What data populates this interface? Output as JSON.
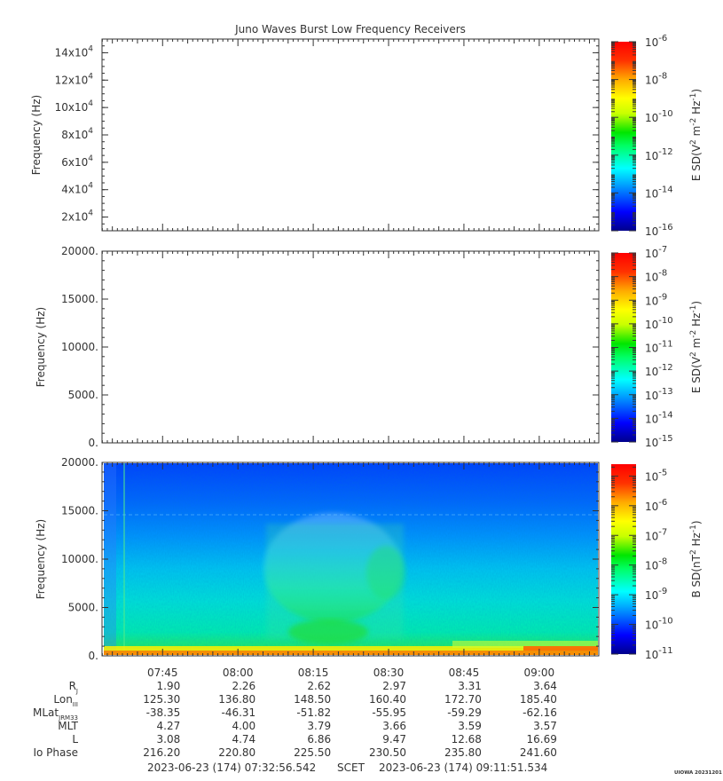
{
  "title": "Juno Waves Burst Low Frequency Receivers",
  "footer": {
    "start": "2023-06-23 (174) 07:32:56.542",
    "scet": "SCET",
    "end": "2023-06-23 (174) 09:11:51.534",
    "stamp": "UIOWA 20231201"
  },
  "chart_data": [
    {
      "type": "heatmap",
      "panel": "top",
      "ylabel": "Frequency (Hz)",
      "ylim": [
        10000,
        150000
      ],
      "yticks": [
        {
          "value": 20000,
          "mant": "2x10",
          "exp": "4"
        },
        {
          "value": 40000,
          "mant": "4x10",
          "exp": "4"
        },
        {
          "value": 60000,
          "mant": "6x10",
          "exp": "4"
        },
        {
          "value": 80000,
          "mant": "8x10",
          "exp": "4"
        },
        {
          "value": 100000,
          "mant": "10x10",
          "exp": "4"
        },
        {
          "value": 120000,
          "mant": "12x10",
          "exp": "4"
        },
        {
          "value": 140000,
          "mant": "14x10",
          "exp": "4"
        }
      ],
      "colorbar": {
        "label_html": "E SD(V<tspan dy='-5' font-size='8'>2</tspan><tspan dy='5'> m</tspan><tspan dy='-5' font-size='8'>-2</tspan><tspan dy='5'> Hz</tspan><tspan dy='-5' font-size='8'>-1</tspan><tspan dy='5'>)</tspan>",
        "log_range": [
          -16,
          -6
        ],
        "ticks": [
          -6,
          -8,
          -10,
          -12,
          -14,
          -16
        ]
      },
      "data": "empty"
    },
    {
      "type": "heatmap",
      "panel": "middle",
      "ylabel": "Frequency (Hz)",
      "ylim": [
        0,
        20000
      ],
      "yticks": [
        {
          "value": 0,
          "label": "0."
        },
        {
          "value": 5000,
          "label": "5000."
        },
        {
          "value": 10000,
          "label": "10000."
        },
        {
          "value": 15000,
          "label": "15000."
        },
        {
          "value": 20000,
          "label": "20000."
        }
      ],
      "colorbar": {
        "log_range": [
          -15,
          -7
        ],
        "ticks": [
          -7,
          -8,
          -9,
          -10,
          -11,
          -12,
          -13,
          -14,
          -15
        ]
      },
      "data": "empty"
    },
    {
      "type": "heatmap",
      "panel": "bottom",
      "ylabel": "Frequency (Hz)",
      "ylim": [
        0,
        20000
      ],
      "yticks": [
        {
          "value": 0,
          "label": "0."
        },
        {
          "value": 5000,
          "label": "5000."
        },
        {
          "value": 10000,
          "label": "10000."
        },
        {
          "value": 15000,
          "label": "15000."
        },
        {
          "value": 20000,
          "label": "20000."
        }
      ],
      "colorbar": {
        "log_range": [
          -11,
          -4.6
        ],
        "ticks": [
          -5,
          -6,
          -7,
          -8,
          -9,
          -10,
          -11
        ]
      },
      "data": "spectrogram: broadband noise, strongest below 1000 Hz, enhanced emission 08:07-08:30 up to ~16000 Hz"
    }
  ],
  "time_axis": {
    "start_minutes": 452.94,
    "end_minutes": 551.86,
    "major": [
      {
        "label": "07:45",
        "minutes": 465
      },
      {
        "label": "08:00",
        "minutes": 480
      },
      {
        "label": "08:15",
        "minutes": 495
      },
      {
        "label": "08:30",
        "minutes": 510
      },
      {
        "label": "08:45",
        "minutes": 525
      },
      {
        "label": "09:00",
        "minutes": 540
      }
    ]
  },
  "ephemeris": [
    {
      "label": "R",
      "sub": "J",
      "values": [
        "1.90",
        "2.26",
        "2.62",
        "2.97",
        "3.31",
        "3.64"
      ]
    },
    {
      "label": "Lon",
      "sub": "III",
      "values": [
        "125.30",
        "136.80",
        "148.50",
        "160.40",
        "172.70",
        "185.40"
      ]
    },
    {
      "label": "MLat",
      "sub": "JRM33",
      "values": [
        "-38.35",
        "-46.31",
        "-51.82",
        "-55.95",
        "-59.29",
        "-62.16"
      ]
    },
    {
      "label": "MLT",
      "sub": "",
      "values": [
        "4.27",
        "4.00",
        "3.79",
        "3.66",
        "3.59",
        "3.57"
      ]
    },
    {
      "label": "L",
      "sub": "",
      "values": [
        "3.08",
        "4.74",
        "6.86",
        "9.47",
        "12.68",
        "16.69"
      ]
    },
    {
      "label": "Io Phase",
      "sub": "",
      "values": [
        "216.20",
        "220.80",
        "225.50",
        "230.50",
        "235.80",
        "241.60"
      ]
    }
  ],
  "colors": {
    "axis": "#333333",
    "colormap": [
      "#00008c",
      "#0000ff",
      "#00aaff",
      "#00ffff",
      "#00ff64",
      "#00e600",
      "#c8ff00",
      "#ffff00",
      "#ffaa00",
      "#ff3200",
      "#ff0000"
    ]
  }
}
